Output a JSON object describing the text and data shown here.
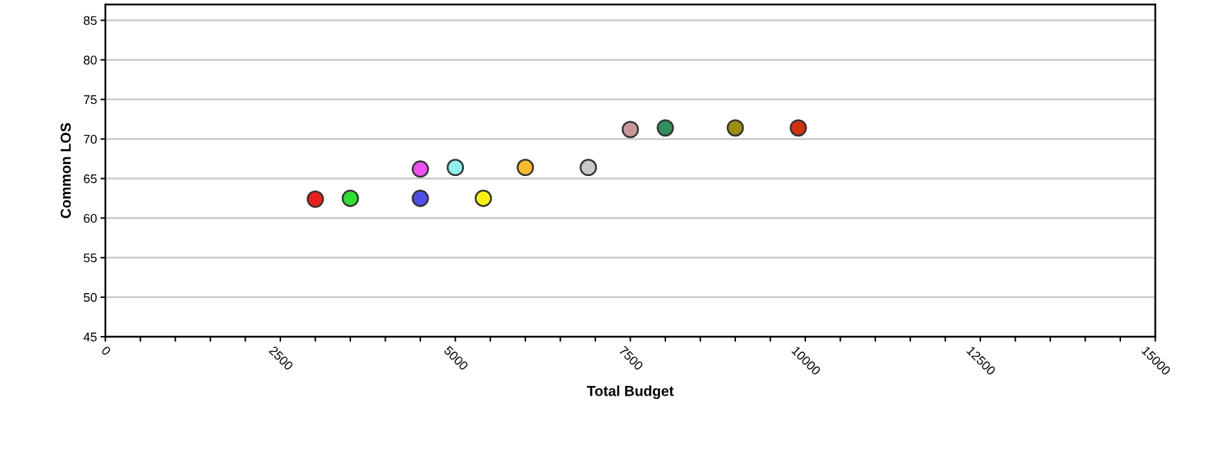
{
  "chart_data": {
    "type": "scatter",
    "xlabel": "Total Budget",
    "ylabel": "Common LOS",
    "x": [
      3000,
      3500,
      4500,
      4500,
      5000,
      5400,
      6000,
      6900,
      7500,
      8000,
      9000,
      9900
    ],
    "values": [
      62.4,
      62.5,
      62.5,
      66.2,
      66.4,
      62.5,
      66.4,
      66.4,
      71.2,
      71.4,
      71.4,
      71.4
    ],
    "colors": [
      "#e82020",
      "#30e030",
      "#5050e8",
      "#f050f0",
      "#90f0f0",
      "#f8f010",
      "#f8b830",
      "#c8c8c8",
      "#c89898",
      "#309060",
      "#989010",
      "#d03010"
    ],
    "marker": "circle",
    "xlim": [
      0,
      15000
    ],
    "xticks": [
      0,
      {
        "value": 500,
        "label": null
      },
      {
        "value": 1000,
        "label": null
      },
      {
        "value": 1500,
        "label": null
      },
      {
        "value": 2000,
        "label": null
      },
      2500,
      {
        "value": 3000,
        "label": null
      },
      {
        "value": 3500,
        "label": null
      },
      {
        "value": 4000,
        "label": null
      },
      {
        "value": 4500,
        "label": null
      },
      5000,
      {
        "value": 5500,
        "label": null
      },
      {
        "value": 6000,
        "label": null
      },
      {
        "value": 6500,
        "label": null
      },
      {
        "value": 7000,
        "label": null
      },
      7500,
      {
        "value": 8000,
        "label": null
      },
      {
        "value": 8500,
        "label": null
      },
      {
        "value": 9000,
        "label": null
      },
      {
        "value": 9500,
        "label": null
      },
      10000,
      {
        "value": 10500,
        "label": null
      },
      {
        "value": 11000,
        "label": null
      },
      {
        "value": 11500,
        "label": null
      },
      {
        "value": 12000,
        "label": null
      },
      12500,
      {
        "value": 13000,
        "label": null
      },
      {
        "value": 13500,
        "label": null
      },
      {
        "value": 14000,
        "label": null
      },
      {
        "value": 14500,
        "label": null
      },
      15000
    ],
    "ylim": [
      45,
      87
    ],
    "yticks": [
      45,
      50,
      55,
      60,
      65,
      70,
      75,
      80,
      85
    ],
    "grid": "y",
    "legend": false
  }
}
